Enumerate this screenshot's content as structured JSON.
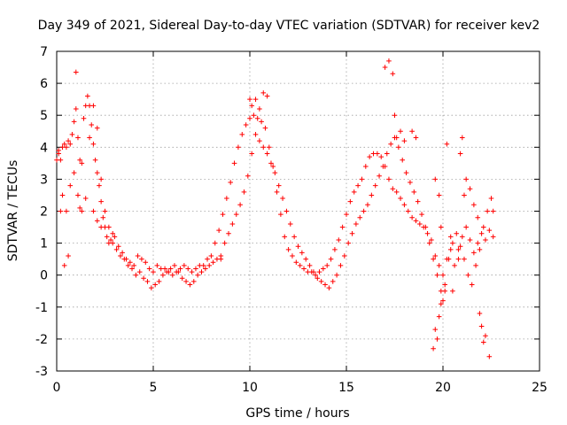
{
  "chart_data": {
    "type": "scatter",
    "title": "Day 349 of 2021, Sidereal Day-to-day VTEC variation (SDTVAR) for receiver kev2",
    "xlabel": "GPS time / hours",
    "ylabel": "SDTVAR / TECUs",
    "xlim": [
      0,
      25
    ],
    "ylim": [
      -3,
      7
    ],
    "x_ticks": [
      0,
      5,
      10,
      15,
      20,
      25
    ],
    "y_ticks": [
      -3,
      -2,
      -1,
      0,
      1,
      2,
      3,
      4,
      5,
      6,
      7
    ],
    "x_tick_labels": [
      "0",
      "5",
      "10",
      "15",
      "20",
      "25"
    ],
    "y_tick_labels": [
      "-3",
      "-2",
      "-1",
      "0",
      "1",
      "2",
      "3",
      "4",
      "5",
      "6",
      "7"
    ],
    "grid": true,
    "marker": "+",
    "marker_color": "#ff0000",
    "series": [
      {
        "name": "SDTVAR",
        "x": [
          0.0,
          0.1,
          0.2,
          0.3,
          0.4,
          0.5,
          0.6,
          0.7,
          0.8,
          0.9,
          1.0,
          1.1,
          1.2,
          1.3,
          1.4,
          1.5,
          1.6,
          1.7,
          1.8,
          1.9,
          2.0,
          2.1,
          2.2,
          2.3,
          2.4,
          2.5,
          2.6,
          2.7,
          2.8,
          2.9,
          3.0,
          3.2,
          3.4,
          3.6,
          3.8,
          4.0,
          4.2,
          4.4,
          4.6,
          4.8,
          5.0,
          5.2,
          5.4,
          5.6,
          5.8,
          6.0,
          6.2,
          6.4,
          6.6,
          6.8,
          7.0,
          7.2,
          7.4,
          7.6,
          7.8,
          8.0,
          8.2,
          8.4,
          8.6,
          8.8,
          9.0,
          9.2,
          9.4,
          9.6,
          9.8,
          10.0,
          10.2,
          10.4,
          10.6,
          10.8,
          11.0,
          11.2,
          11.4,
          11.6,
          11.8,
          12.0,
          12.2,
          12.4,
          12.6,
          12.8,
          13.0,
          13.2,
          13.4,
          13.6,
          13.8,
          14.0,
          14.2,
          14.4,
          14.6,
          14.8,
          15.0,
          15.2,
          15.4,
          15.6,
          15.8,
          16.0,
          16.2,
          16.4,
          16.6,
          16.8,
          17.0,
          17.2,
          17.4,
          17.6,
          17.8,
          18.0,
          18.2,
          18.4,
          18.6,
          18.8,
          19.0,
          19.2,
          19.4,
          19.6,
          19.8,
          20.0,
          20.2,
          20.4,
          20.6,
          20.8,
          21.0,
          21.2,
          21.4,
          21.6,
          21.8,
          22.0,
          22.2,
          22.4,
          22.6,
          0.1,
          0.3,
          0.5,
          0.7,
          0.9,
          1.1,
          1.3,
          1.5,
          1.7,
          1.9,
          2.1,
          2.3,
          2.5,
          2.7,
          2.9,
          3.1,
          3.3,
          3.5,
          3.7,
          3.9,
          4.1,
          4.3,
          4.5,
          4.7,
          4.9,
          5.1,
          5.3,
          5.5,
          5.7,
          5.9,
          6.1,
          6.3,
          6.5,
          6.7,
          6.9,
          7.1,
          7.3,
          7.5,
          7.7,
          7.9,
          8.1,
          8.3,
          8.5,
          8.7,
          8.9,
          9.1,
          9.3,
          9.5,
          9.7,
          9.9,
          10.1,
          10.3,
          10.5,
          10.7,
          10.9,
          11.1,
          11.3,
          11.5,
          11.7,
          11.9,
          12.1,
          12.3,
          12.5,
          12.7,
          12.9,
          13.1,
          13.3,
          13.5,
          13.7,
          13.9,
          14.1,
          14.3,
          14.5,
          14.7,
          14.9,
          15.1,
          15.3,
          15.5,
          15.7,
          15.9,
          16.1,
          16.3,
          16.5,
          16.7,
          16.9,
          17.1,
          17.3,
          17.5,
          17.7,
          17.9,
          18.1,
          18.3,
          18.5,
          18.7,
          18.9,
          19.1,
          19.3,
          19.5,
          19.7,
          19.9,
          20.1,
          20.3,
          20.5,
          20.7,
          20.9,
          21.1,
          21.3,
          21.5,
          21.7,
          21.9,
          22.1,
          22.3,
          22.5,
          0.2,
          0.4,
          0.6,
          1.0,
          1.2,
          1.9,
          2.1,
          2.3,
          8.5,
          10.0,
          10.1,
          10.3,
          10.5,
          10.7,
          10.9,
          17.0,
          17.2,
          17.4,
          17.5,
          17.6,
          17.8,
          18.0,
          18.4,
          18.6,
          19.5,
          19.6,
          19.7,
          19.8,
          19.9,
          20.0,
          20.2,
          20.5,
          20.9,
          21.0,
          21.2,
          21.4,
          21.6,
          21.8,
          22.0,
          22.2,
          22.4,
          22.6,
          20.1,
          19.9,
          19.8,
          19.6,
          20.4,
          20.8,
          21.1,
          21.9,
          22.1
        ],
        "y": [
          3.6,
          3.8,
          3.6,
          4.0,
          4.1,
          4.0,
          4.2,
          4.1,
          4.4,
          4.8,
          5.2,
          4.3,
          3.6,
          3.5,
          4.9,
          5.3,
          5.6,
          5.3,
          4.7,
          4.1,
          3.6,
          3.2,
          2.8,
          2.3,
          1.8,
          1.5,
          1.2,
          1.0,
          1.1,
          1.3,
          1.2,
          0.9,
          0.7,
          0.5,
          0.4,
          0.3,
          0.6,
          0.5,
          0.4,
          0.2,
          0.1,
          0.3,
          0.2,
          0.2,
          0.1,
          0.0,
          0.1,
          0.2,
          0.3,
          0.2,
          0.1,
          0.2,
          0.3,
          0.3,
          0.5,
          0.6,
          1.0,
          1.4,
          1.9,
          2.4,
          2.9,
          3.5,
          4.0,
          4.4,
          4.7,
          4.9,
          5.0,
          4.9,
          4.8,
          4.6,
          4.0,
          3.4,
          2.6,
          1.9,
          1.2,
          0.8,
          0.6,
          0.4,
          0.3,
          0.2,
          0.1,
          0.1,
          0.0,
          0.1,
          0.2,
          0.3,
          0.5,
          0.8,
          1.1,
          1.5,
          1.9,
          2.3,
          2.6,
          2.8,
          3.0,
          3.4,
          3.7,
          3.8,
          3.8,
          3.7,
          3.4,
          3.0,
          2.7,
          2.6,
          2.4,
          2.2,
          2.0,
          1.8,
          1.7,
          1.6,
          1.5,
          1.3,
          1.1,
          0.6,
          0.3,
          0.0,
          0.5,
          1.2,
          0.3,
          0.8,
          1.2,
          1.5,
          1.1,
          0.7,
          1.0,
          1.3,
          1.1,
          1.4,
          1.2,
          3.9,
          2.5,
          2.0,
          2.8,
          3.2,
          2.5,
          2.0,
          2.4,
          4.3,
          5.3,
          4.6,
          3.0,
          2.0,
          1.5,
          1.0,
          0.8,
          0.6,
          0.5,
          0.3,
          0.2,
          0.0,
          0.1,
          -0.1,
          -0.2,
          -0.4,
          -0.3,
          -0.2,
          0.0,
          0.1,
          0.2,
          0.3,
          0.1,
          -0.1,
          -0.2,
          -0.3,
          -0.2,
          0.0,
          0.1,
          0.2,
          0.3,
          0.4,
          0.5,
          0.6,
          1.0,
          1.3,
          1.6,
          1.9,
          2.2,
          2.6,
          3.1,
          3.8,
          4.4,
          4.2,
          4.0,
          3.8,
          3.5,
          3.2,
          2.8,
          2.4,
          2.0,
          1.6,
          1.2,
          0.9,
          0.7,
          0.5,
          0.3,
          0.1,
          -0.1,
          -0.2,
          -0.3,
          -0.4,
          -0.2,
          0.0,
          0.3,
          0.6,
          1.0,
          1.3,
          1.6,
          1.8,
          2.0,
          2.2,
          2.5,
          2.8,
          3.1,
          3.4,
          3.8,
          4.1,
          4.3,
          4.0,
          3.6,
          3.2,
          2.9,
          2.6,
          2.3,
          1.9,
          1.5,
          1.0,
          0.5,
          0.0,
          -0.5,
          -0.3,
          0.5,
          1.0,
          1.3,
          0.9,
          0.5,
          0.0,
          -0.3,
          0.3,
          0.8,
          1.5,
          2.0,
          2.4,
          2.0,
          0.3,
          0.6,
          6.35,
          2.1,
          2.0,
          1.7,
          1.5,
          0.5,
          5.5,
          5.3,
          5.5,
          5.2,
          5.7,
          5.6,
          6.5,
          6.7,
          6.3,
          5.0,
          4.3,
          4.5,
          4.2,
          4.5,
          4.3,
          -2.3,
          -1.7,
          -2.0,
          -1.3,
          -0.9,
          -0.8,
          4.1,
          -0.5,
          3.8,
          4.3,
          3.0,
          2.7,
          2.2,
          1.8,
          -1.6,
          -1.9,
          -2.55,
          2.0,
          -0.5,
          1.5,
          2.5,
          3.0,
          0.8,
          0.5,
          2.5,
          -1.2,
          -2.1
        ]
      }
    ]
  }
}
